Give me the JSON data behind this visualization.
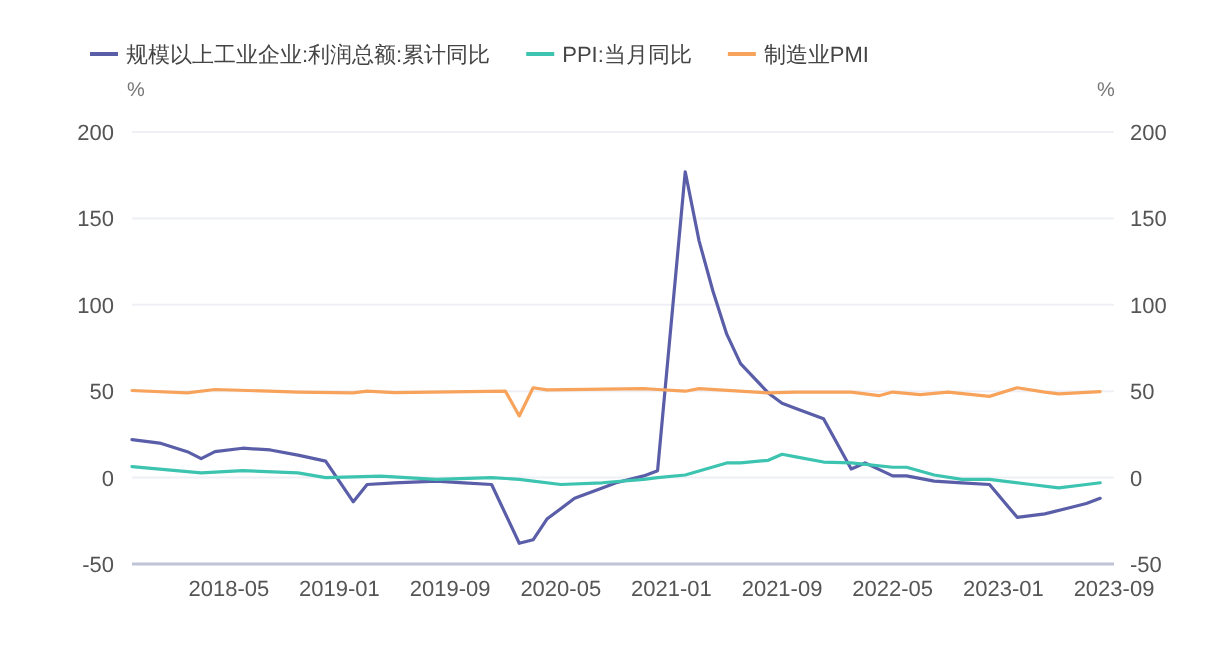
{
  "chart_data": {
    "type": "line",
    "ylabel": "%",
    "y2label": "%",
    "xlim": [
      "2017-10",
      "2023-09"
    ],
    "xticks": [
      "2018-05",
      "2019-01",
      "2019-09",
      "2020-05",
      "2021-01",
      "2021-09",
      "2022-05",
      "2023-01",
      "2023-09"
    ],
    "ylim": [
      -50,
      200
    ],
    "yticks": [
      -50,
      0,
      50,
      100,
      150,
      200
    ],
    "y2lim": [
      -50,
      200
    ],
    "y2ticks": [
      -50,
      0,
      50,
      100,
      150,
      200
    ],
    "grid": "y",
    "legend": "top left",
    "marker": "none",
    "line_style": "solid",
    "series": [
      {
        "name": "规模以上工业企业:利润总额:累计同比",
        "color": "#5a5ea8",
        "x": [
          "2017-10",
          "2017-12",
          "2018-02",
          "2018-03",
          "2018-04",
          "2018-06",
          "2018-08",
          "2018-10",
          "2018-12",
          "2019-02",
          "2019-03",
          "2019-05",
          "2019-08",
          "2019-10",
          "2019-12",
          "2020-02",
          "2020-03",
          "2020-04",
          "2020-06",
          "2020-08",
          "2020-09",
          "2020-11",
          "2020-12",
          "2021-02",
          "2021-03",
          "2021-04",
          "2021-05",
          "2021-06",
          "2021-08",
          "2021-09",
          "2021-10",
          "2021-12",
          "2022-02",
          "2022-03",
          "2022-05",
          "2022-06",
          "2022-08",
          "2022-10",
          "2022-12",
          "2023-02",
          "2023-04",
          "2023-06",
          "2023-07",
          "2023-08"
        ],
        "values": [
          22,
          20,
          15,
          11,
          15,
          17,
          16,
          13,
          9.5,
          -14,
          -4,
          -3,
          -2,
          -3,
          -4,
          -38,
          -36,
          -24,
          -12,
          -6,
          -3,
          1,
          4,
          177,
          137,
          108,
          83,
          66,
          49,
          43,
          40,
          34,
          5,
          8.5,
          1,
          1,
          -2,
          -3,
          -4,
          -23,
          -21,
          -17,
          -15,
          -12
        ]
      },
      {
        "name": "PPI:当月同比",
        "color": "#3cc4b0",
        "x": [
          "2017-10",
          "2018-03",
          "2018-06",
          "2018-10",
          "2018-12",
          "2019-04",
          "2019-08",
          "2019-12",
          "2020-02",
          "2020-05",
          "2020-08",
          "2020-11",
          "2020-12",
          "2021-02",
          "2021-05",
          "2021-06",
          "2021-08",
          "2021-09",
          "2021-10",
          "2021-12",
          "2022-02",
          "2022-05",
          "2022-06",
          "2022-08",
          "2022-10",
          "2022-12",
          "2023-01",
          "2023-03",
          "2023-05",
          "2023-07",
          "2023-08"
        ],
        "values": [
          6.4,
          2.7,
          4,
          2.7,
          0,
          0.8,
          -1,
          0,
          -1,
          -4,
          -3,
          -1,
          0,
          1.5,
          8.5,
          8.5,
          10,
          13.5,
          12,
          9,
          8.5,
          6,
          6,
          1.5,
          -1,
          -1,
          -2,
          -4,
          -6,
          -4,
          -3
        ]
      },
      {
        "name": "制造业PMI",
        "color": "#f7a35c",
        "x": [
          "2017-10",
          "2018-02",
          "2018-04",
          "2018-10",
          "2019-02",
          "2019-03",
          "2019-05",
          "2020-01",
          "2020-02",
          "2020-03",
          "2020-04",
          "2020-11",
          "2020-12",
          "2021-02",
          "2021-03",
          "2021-08",
          "2021-10",
          "2022-02",
          "2022-04",
          "2022-05",
          "2022-07",
          "2022-09",
          "2022-12",
          "2023-02",
          "2023-04",
          "2023-05",
          "2023-08"
        ],
        "values": [
          50.4,
          49,
          51,
          49.5,
          49,
          50,
          49.2,
          50,
          35.7,
          52,
          50.8,
          51.5,
          51,
          50,
          51.5,
          49,
          49.5,
          49.5,
          47.4,
          49.5,
          48,
          49.5,
          47,
          52,
          49.5,
          48.5,
          49.7
        ]
      }
    ]
  }
}
